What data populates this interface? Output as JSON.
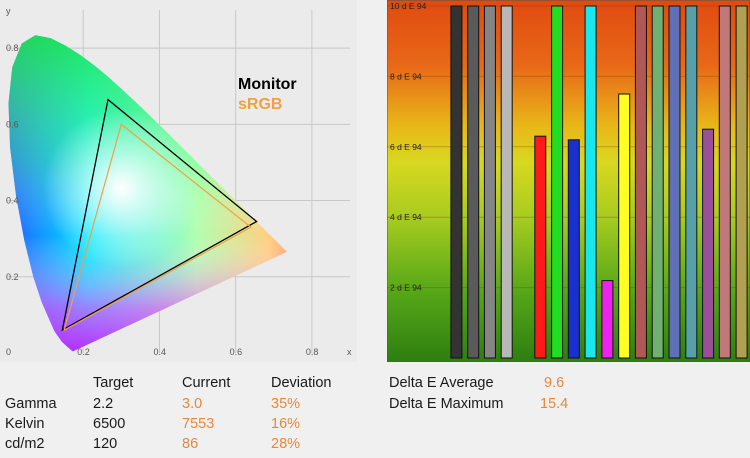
{
  "chart_data": [
    {
      "type": "scatter",
      "title": "",
      "xlabel": "x",
      "ylabel": "y",
      "xlim": [
        0,
        0.9
      ],
      "ylim": [
        0,
        0.9
      ],
      "x_ticks": [
        "0.2",
        "0.4",
        "0.6",
        "0.8"
      ],
      "y_ticks": [
        "0.2",
        "0.4",
        "0.6",
        "0.8"
      ],
      "origin_label": "0",
      "grid": true,
      "legend_position": "right",
      "series": [
        {
          "name": "Monitor",
          "color": "#000000",
          "points": [
            [
              0.655,
              0.345
            ],
            [
              0.265,
              0.665
            ],
            [
              0.145,
              0.06
            ]
          ]
        },
        {
          "name": "sRGB",
          "color": "#f0a040",
          "points": [
            [
              0.64,
              0.33
            ],
            [
              0.3,
              0.6
            ],
            [
              0.15,
              0.06
            ]
          ]
        }
      ]
    },
    {
      "type": "bar",
      "title": "",
      "ylim": [
        0,
        10
      ],
      "y_ticks": [
        "2 d E 94",
        "4 d E 94",
        "6 d E 94",
        "8 d E 94",
        "10 d E 94"
      ],
      "grid": true,
      "values": [
        10,
        10,
        10,
        10,
        0,
        6.3,
        10,
        6.2,
        10,
        2.2,
        7.5,
        10,
        10,
        10,
        10,
        6.5,
        10,
        10
      ],
      "colors": [
        "#333333",
        "#5a5a5a",
        "#858585",
        "#b8b8b8",
        "#cccccc",
        "#ff1a1a",
        "#22dd22",
        "#1a2fd0",
        "#18e8ee",
        "#ee22ee",
        "#ffff22",
        "#b05858",
        "#70b070",
        "#6070b8",
        "#58a0a8",
        "#9a5098",
        "#c07878",
        "#b0a050"
      ]
    }
  ],
  "stats": {
    "headers": [
      "Target",
      "Current",
      "Deviation"
    ],
    "rows": [
      {
        "label": "Gamma",
        "target": "2.2",
        "current": "3.0",
        "deviation": "35%"
      },
      {
        "label": "Kelvin",
        "target": "6500",
        "current": "7553",
        "deviation": "16%"
      },
      {
        "label": "cd/m2",
        "target": "120",
        "current": "86",
        "deviation": "28%"
      }
    ]
  },
  "delta_e": {
    "average_label": "Delta E Average",
    "average_value": "9.6",
    "maximum_label": "Delta E Maximum",
    "maximum_value": "15.4"
  }
}
